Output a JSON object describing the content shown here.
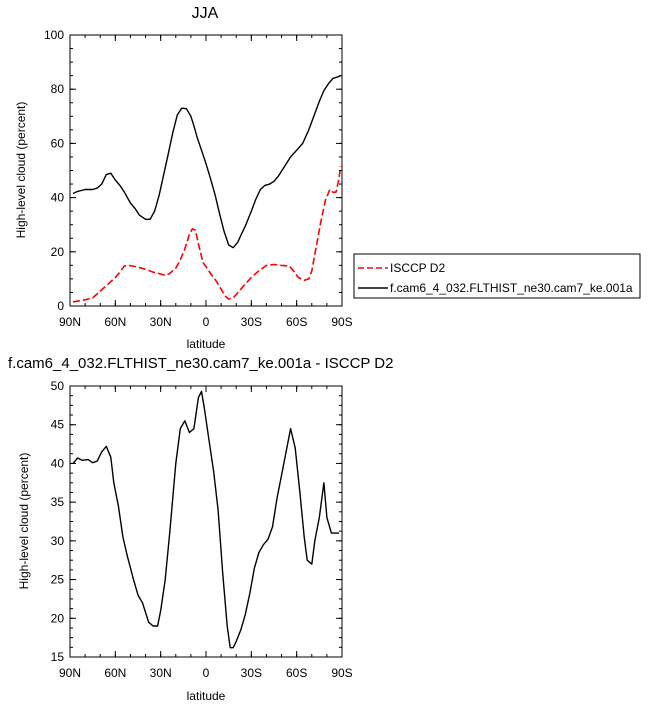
{
  "chart_data": [
    {
      "type": "line",
      "title": "JJA",
      "xlabel": "latitude",
      "ylabel": "High-level cloud (percent)",
      "xlim": [
        90,
        -90
      ],
      "ylim": [
        0,
        100
      ],
      "x_ticks": [
        90,
        60,
        30,
        0,
        -30,
        -60,
        -90
      ],
      "x_tick_labels": [
        "90N",
        "60N",
        "30N",
        "0",
        "30S",
        "60S",
        "90S"
      ],
      "y_ticks": [
        0,
        20,
        40,
        60,
        80,
        100
      ],
      "y_tick_labels": [
        "0",
        "20",
        "40",
        "60",
        "80",
        "100"
      ],
      "legend_position": "right",
      "series": [
        {
          "name": "ISCCP D2",
          "color": "#ff0000",
          "dash": "dashed",
          "x": [
            88,
            85,
            80,
            75,
            70,
            65,
            60,
            57,
            54,
            50,
            45,
            40,
            35,
            30,
            27,
            24,
            20,
            17,
            14,
            11,
            9,
            7,
            5,
            2,
            0,
            -3,
            -7,
            -10,
            -13,
            -15,
            -18,
            -20,
            -25,
            -30,
            -35,
            -40,
            -45,
            -50,
            -55,
            -58,
            -61,
            -65,
            -68,
            -70,
            -73,
            -76,
            -79,
            -82,
            -84,
            -86,
            -88,
            -89
          ],
          "y": [
            1.5,
            1.8,
            2.3,
            3,
            5.5,
            8,
            10.5,
            12.5,
            14.8,
            14.9,
            14.3,
            13.5,
            12.5,
            11.8,
            11.3,
            12,
            14,
            17,
            21,
            26.5,
            28.5,
            28,
            23,
            16,
            14.5,
            12,
            9,
            6.2,
            3.5,
            2.6,
            3,
            4.2,
            7.5,
            10.5,
            13,
            15,
            15.3,
            15,
            14.8,
            13,
            10.5,
            9.5,
            10,
            13,
            22,
            31,
            39,
            43,
            42,
            42,
            47,
            51.5
          ]
        },
        {
          "name": "f.cam6_4_032.FLTHIST_ne30.cam7_ke.001a",
          "color": "#000000",
          "dash": "solid",
          "x": [
            88,
            85,
            80,
            75,
            72,
            69,
            66,
            63,
            60,
            57,
            54,
            50,
            47,
            44,
            40,
            37,
            34,
            31,
            28,
            25,
            22,
            19,
            16,
            13,
            10,
            8,
            6,
            3,
            0,
            -3,
            -6,
            -9,
            -12,
            -15,
            -18,
            -21,
            -23,
            -26,
            -30,
            -33,
            -36,
            -39,
            -42,
            -45,
            -48,
            -52,
            -56,
            -60,
            -64,
            -68,
            -72,
            -75,
            -78,
            -81,
            -84,
            -87,
            -89
          ],
          "y": [
            41.5,
            42.3,
            43,
            43,
            43.5,
            45,
            48.5,
            49,
            46.5,
            44.5,
            42,
            38,
            36,
            33.5,
            32,
            32,
            35,
            41,
            48.5,
            56,
            64,
            70.5,
            73,
            72.8,
            70,
            66.5,
            62.5,
            57.5,
            52.5,
            47,
            41,
            34,
            27.5,
            22.5,
            21.5,
            23.5,
            26,
            29.5,
            35,
            39.5,
            43,
            44.5,
            45,
            46,
            48,
            51.5,
            55,
            57.5,
            60,
            65,
            71,
            75.5,
            79.5,
            82,
            84,
            84.5,
            85
          ]
        }
      ]
    },
    {
      "type": "line",
      "title": "f.cam6_4_032.FLTHIST_ne30.cam7_ke.001a - ISCCP D2",
      "xlabel": "latitude",
      "ylabel": "High-level cloud (percent)",
      "xlim": [
        90,
        -90
      ],
      "ylim": [
        15,
        50
      ],
      "x_ticks": [
        90,
        60,
        30,
        0,
        -30,
        -60,
        -90
      ],
      "x_tick_labels": [
        "90N",
        "60N",
        "30N",
        "0",
        "30S",
        "60S",
        "90S"
      ],
      "y_ticks": [
        15,
        20,
        25,
        30,
        35,
        40,
        45,
        50
      ],
      "y_tick_labels": [
        "15",
        "20",
        "25",
        "30",
        "35",
        "40",
        "45",
        "50"
      ],
      "series": [
        {
          "color": "#000000",
          "dash": "solid",
          "x": [
            88,
            85,
            82,
            78,
            75,
            72,
            69,
            66,
            63,
            61,
            58,
            55,
            52,
            48,
            45,
            42,
            38,
            35,
            32,
            30,
            27,
            24,
            20,
            17,
            14,
            11,
            8,
            5,
            3,
            1,
            -2,
            -5,
            -8,
            -11,
            -14,
            -16,
            -18,
            -20,
            -23,
            -26,
            -29,
            -32,
            -35,
            -38,
            -41,
            -44,
            -47,
            -50,
            -53,
            -56,
            -59,
            -62,
            -65,
            -67,
            -70,
            -72,
            -75,
            -78,
            -80,
            -83,
            -86,
            -88
          ],
          "y": [
            40,
            40.7,
            40.4,
            40.5,
            40.1,
            40.3,
            41.5,
            42.2,
            40.8,
            37.5,
            34.5,
            30.5,
            28,
            25,
            23,
            22,
            19.5,
            19,
            19,
            21,
            25,
            31,
            40,
            44.5,
            45.5,
            44,
            44.5,
            48.5,
            49.3,
            47,
            43,
            39,
            34,
            26,
            19,
            16.2,
            16.2,
            17,
            18.5,
            20.5,
            23.2,
            26.5,
            28.5,
            29.5,
            30.2,
            31.8,
            35.5,
            38.5,
            41.5,
            44.5,
            42,
            36.5,
            30.5,
            27.5,
            27,
            30,
            33,
            37.5,
            33,
            31,
            31,
            31
          ]
        }
      ]
    }
  ],
  "legend": [
    {
      "label": "ISCCP D2",
      "color": "#ff0000",
      "dash": "dashed"
    },
    {
      "label": "f.cam6_4_032.FLTHIST_ne30.cam7_ke.001a",
      "color": "#000000",
      "dash": "solid"
    }
  ]
}
